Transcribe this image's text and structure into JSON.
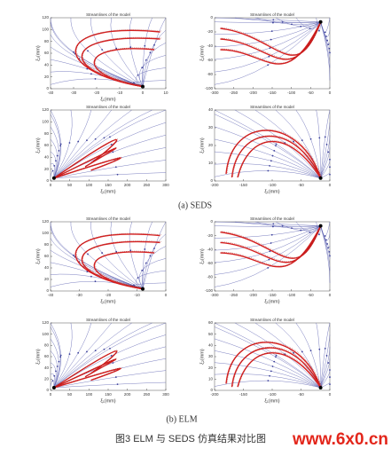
{
  "panels": [
    {
      "title": "Streamlines of the model",
      "xlabel": "ξ₁(mm)",
      "ylabel": "ξ₂(mm)",
      "xticks": [
        "-40",
        "-30",
        "-20",
        "-10",
        "0",
        "10"
      ],
      "yticks": [
        "0",
        "20",
        "40",
        "60",
        "80",
        "100",
        "120"
      ]
    },
    {
      "title": "Streamlines of the model",
      "ylabel": "ξ₂(mm)",
      "xticks": [
        "-300",
        "-250",
        "-200",
        "-150",
        "-100",
        "-50",
        "0"
      ],
      "yticks": [
        "-100",
        "-80",
        "-60",
        "-40",
        "-20",
        "0"
      ]
    },
    {
      "title": "Streamlines of the model",
      "xlabel": "ξ₁(mm)",
      "ylabel": "ξ₂(mm)",
      "xticks": [
        "0",
        "50",
        "100",
        "150",
        "200",
        "250",
        "300"
      ],
      "yticks": [
        "0",
        "20",
        "40",
        "60",
        "80",
        "100",
        "120"
      ]
    },
    {
      "title": "Streamlines of the model",
      "xlabel": "ξ₁(mm)",
      "ylabel": "ξ₂(mm)",
      "xticks": [
        "-200",
        "-150",
        "-100",
        "-50",
        "0"
      ],
      "yticks": [
        "0",
        "10",
        "20",
        "30",
        "40"
      ]
    },
    {
      "title": "Streamlines of the model",
      "xlabel": "ξ₁(mm)",
      "ylabel": "ξ₂(mm)",
      "xticks": [
        "-40",
        "-30",
        "-20",
        "-10",
        "0"
      ],
      "yticks": [
        "0",
        "20",
        "40",
        "60",
        "80",
        "100",
        "120"
      ]
    },
    {
      "title": "Streamlines of the model",
      "xlabel": "ξ₁(mm)",
      "ylabel": "ξ₂(mm)",
      "xticks": [
        "-300",
        "-250",
        "-200",
        "-150",
        "-100",
        "-50",
        "0"
      ],
      "yticks": [
        "-100",
        "-80",
        "-60",
        "-40",
        "-20",
        "0"
      ]
    },
    {
      "title": "Streamlines of the model",
      "xlabel": "ξ₁(mm)",
      "ylabel": "ξ₂(mm)",
      "xticks": [
        "0",
        "50",
        "100",
        "150",
        "200",
        "250",
        "300"
      ],
      "yticks": [
        "0",
        "20",
        "40",
        "60",
        "80",
        "100",
        "120"
      ]
    },
    {
      "title": "Streamlines of the model",
      "xlabel": "ξ₁(mm)",
      "ylabel": "ξ₂(mm)",
      "xticks": [
        "-200",
        "-150",
        "-100",
        "-50",
        "0"
      ],
      "yticks": [
        "0",
        "10",
        "20",
        "30",
        "40",
        "50",
        "60"
      ]
    }
  ],
  "captions": [
    "(a)  SEDS",
    "(b) ELM"
  ],
  "figure_caption": "图3 ELM 与 SEDS 仿真结果对比图",
  "watermark": "www.6x0.cn"
}
